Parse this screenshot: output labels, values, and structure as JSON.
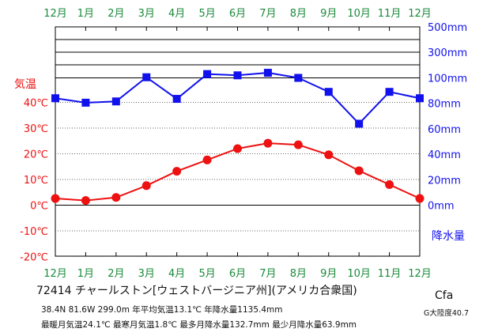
{
  "chart_data": {
    "type": "line",
    "months": [
      "12月",
      "1月",
      "2月",
      "3月",
      "4月",
      "5月",
      "6月",
      "7月",
      "8月",
      "9月",
      "10月",
      "11月",
      "12月"
    ],
    "temperature_axis": {
      "label": "気温",
      "ticks": [
        "40℃",
        "30℃",
        "20℃",
        "10℃",
        "0℃",
        "-10℃",
        "-20℃"
      ],
      "range": [
        -20,
        40
      ]
    },
    "precipitation_axis": {
      "label": "降水量",
      "ticks": [
        "500mm",
        "300mm",
        "100mm",
        "80mm",
        "60mm",
        "40mm",
        "20mm",
        "0mm"
      ],
      "scale": "linear 0–100mm with compressed band above"
    },
    "series": [
      {
        "name": "気温",
        "unit": "℃",
        "color": "#ee1111",
        "values": [
          2.6,
          1.8,
          3.0,
          7.6,
          13.2,
          17.6,
          22.0,
          24.1,
          23.5,
          19.6,
          13.4,
          8.0,
          2.6
        ]
      },
      {
        "name": "降水量",
        "unit": "mm",
        "color": "#1111ee",
        "values": [
          84,
          80.5,
          81.5,
          100.5,
          83.5,
          103,
          102,
          104,
          100,
          89,
          64,
          89,
          84
        ]
      }
    ],
    "colors": {
      "month_labels": "#1a8a3a",
      "temperature_axis": "#ee1111",
      "precipitation_axis": "#1111ee"
    }
  },
  "station": {
    "title": "72414  チャールストン[ウェストバージニア州](アメリカ合衆国)",
    "line1": "38.4N  81.6W  299.0m  年平均気温13.1℃  年降水量1135.4mm",
    "line2": "最暖月気温24.1℃  最寒月気温1.8℃  最多月降水量132.7mm  最少月降水量63.9mm",
    "climate_code": "Cfa",
    "continent": "G大陸度40.7"
  }
}
